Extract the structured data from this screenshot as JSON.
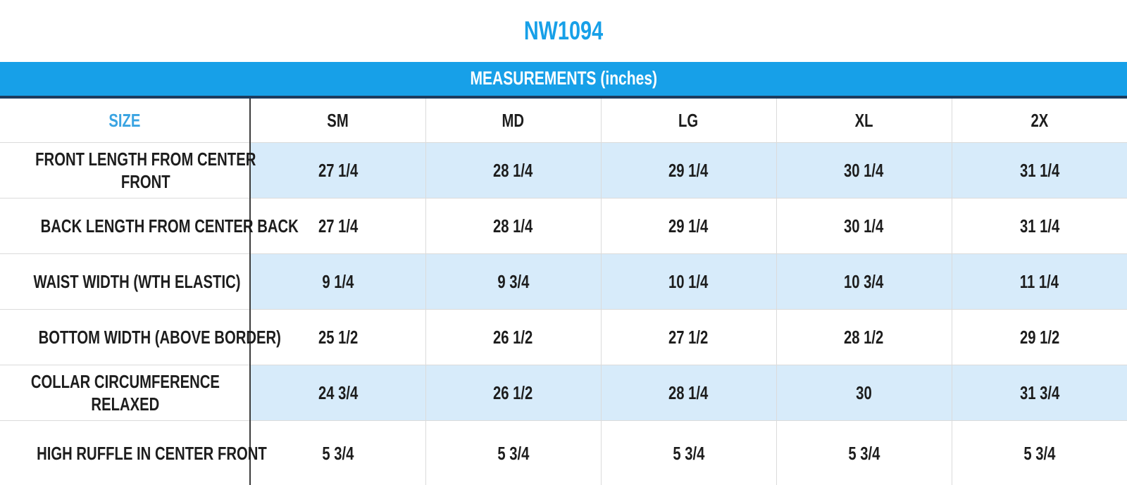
{
  "page_title": "NW1094",
  "colors": {
    "accent_blue": "#17A0E8",
    "size_label_blue": "#3AA4E2",
    "row_label_navy": "#1A4E7C",
    "stripe_light_blue": "#D7EBFA",
    "banner_text": "#FFFFFF",
    "banner_bottom_border_navy": "#1C3C5E",
    "value_text": "#1D1D1D",
    "column_divider_black": "#3C3C3C",
    "grid_line_gray": "#DBDBDB",
    "bottom_edge_teal": "#D2E8E8"
  },
  "chart_data": {
    "type": "table",
    "title": "NW1094",
    "banner": "MEASUREMENTS (inches)",
    "corner_label": "SIZE",
    "columns": [
      "SM",
      "MD",
      "LG",
      "XL",
      "2X"
    ],
    "rows": [
      {
        "label": "FRONT LENGTH FROM CENTER\nFRONT",
        "values": [
          "27 1/4",
          "28 1/4",
          "29 1/4",
          "30 1/4",
          "31 1/4"
        ]
      },
      {
        "label": "BACK LENGTH FROM CENTER BACK",
        "values": [
          "27 1/4",
          "28 1/4",
          "29 1/4",
          "30 1/4",
          "31 1/4"
        ]
      },
      {
        "label": "WAIST WIDTH (WTH ELASTIC)",
        "values": [
          "9 1/4",
          "9 3/4",
          "10 1/4",
          "10 3/4",
          "11 1/4"
        ]
      },
      {
        "label": "BOTTOM WIDTH (ABOVE BORDER)",
        "values": [
          "25 1/2",
          "26 1/2",
          "27 1/2",
          "28 1/2",
          "29 1/2"
        ]
      },
      {
        "label": "COLLAR CIRCUMFERENCE\nRELAXED",
        "values": [
          "24 3/4",
          "26 1/2",
          "28 1/4",
          "30",
          "31 3/4"
        ]
      },
      {
        "label": "HIGH RUFFLE IN CENTER FRONT",
        "values": [
          "5 3/4",
          "5 3/4",
          "5 3/4",
          "5 3/4",
          "5 3/4"
        ]
      }
    ]
  }
}
